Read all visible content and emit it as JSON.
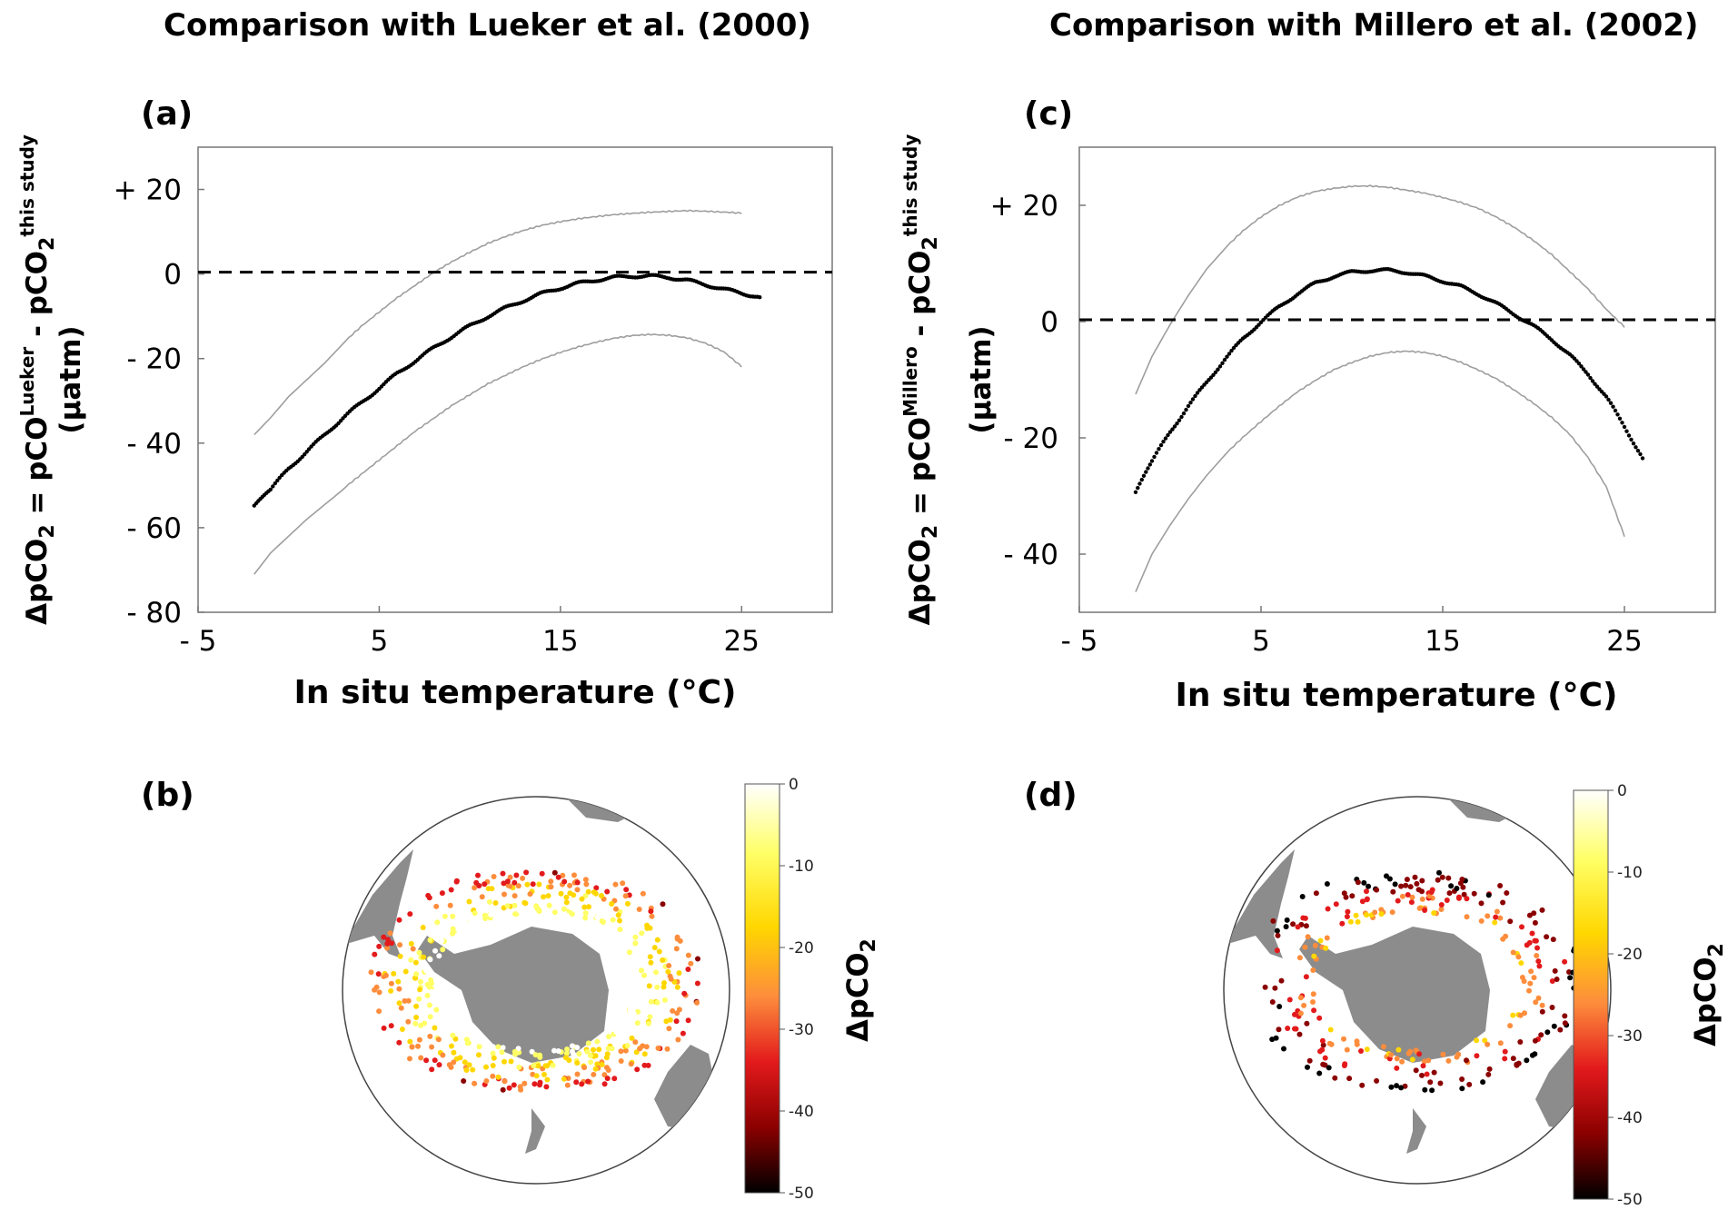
{
  "titles": {
    "left": "Comparison with Lueker et al. (2000)",
    "right": "Comparison with Millero et al. (2002)"
  },
  "panels": {
    "a": "(a)",
    "b": "(b)",
    "c": "(c)",
    "d": "(d)"
  },
  "colors": {
    "points": "#000000",
    "envelope": "#9e9e9e",
    "zero_line": "#000000",
    "land": "#8c8c8c",
    "colormap": [
      "#000000",
      "#8b0000",
      "#e31a1c",
      "#fd8d3c",
      "#ffd700",
      "#ffff66",
      "#ffffff"
    ]
  },
  "chart_data": [
    {
      "id": "a",
      "type": "scatter",
      "title": "",
      "xlabel": "In situ temperature (°C)",
      "ylabel": {
        "main": "ΔpCO",
        "sub": "2",
        "eq": " = pCO",
        "sup1": "Lueker",
        "minus": " - pCO",
        "sup2": "this study",
        "units": "(µatm)"
      },
      "xlim": [
        -5,
        30
      ],
      "ylim": [
        -80,
        30
      ],
      "xticks": [
        -5,
        5,
        15,
        25
      ],
      "xtick_labels": [
        "- 5",
        "5",
        "15",
        "25"
      ],
      "yticks": [
        -80,
        -60,
        -40,
        -20,
        0,
        20
      ],
      "ytick_labels": [
        "- 80",
        "- 60",
        "- 40",
        "- 20",
        "0",
        "+ 20"
      ],
      "zero_line": 0,
      "series": [
        {
          "name": "mean",
          "style": "points",
          "x": [
            -1.9,
            -1,
            0,
            1,
            2,
            3,
            4,
            5,
            6,
            7,
            8,
            9,
            10,
            11,
            12,
            13,
            14,
            15,
            16,
            17,
            18,
            19,
            20,
            21,
            22,
            23,
            24,
            25,
            26
          ],
          "y": [
            -55,
            -51,
            -46,
            -42,
            -38,
            -34,
            -30.5,
            -27,
            -23.5,
            -20.5,
            -17.5,
            -14.8,
            -12.3,
            -10,
            -8,
            -6.2,
            -4.6,
            -3.3,
            -2.2,
            -1.4,
            -0.8,
            -0.5,
            -0.5,
            -0.8,
            -1.5,
            -2.5,
            -3.6,
            -4.5,
            -5.5
          ]
        },
        {
          "name": "upper",
          "style": "line",
          "x": [
            -1.9,
            -1,
            0,
            1,
            2,
            3,
            4,
            5,
            6,
            7,
            8,
            9,
            10,
            11,
            12,
            13,
            14,
            15,
            16,
            17,
            18,
            19,
            20,
            21,
            22,
            23,
            24,
            25
          ],
          "y": [
            -38,
            -34,
            -29,
            -25,
            -21,
            -16.5,
            -12.5,
            -9,
            -5.5,
            -2.5,
            0.5,
            3,
            5.2,
            7.2,
            8.8,
            10.2,
            11.4,
            12.3,
            13.1,
            13.7,
            14.2,
            14.5,
            14.7,
            14.8,
            14.9,
            14.7,
            14.5,
            14.3
          ]
        },
        {
          "name": "lower",
          "style": "line",
          "x": [
            -1.9,
            -1,
            0,
            1,
            2,
            3,
            4,
            5,
            6,
            7,
            8,
            9,
            10,
            11,
            12,
            13,
            14,
            15,
            16,
            17,
            18,
            19,
            20,
            21,
            22,
            23,
            24,
            25
          ],
          "y": [
            -71,
            -66,
            -62,
            -58,
            -54.5,
            -51,
            -47.5,
            -44,
            -40.5,
            -37,
            -34,
            -31,
            -28.5,
            -26,
            -24,
            -22,
            -20.2,
            -18.6,
            -17.2,
            -16,
            -15,
            -14.4,
            -14.2,
            -14.5,
            -15.2,
            -16.5,
            -18.5,
            -22
          ]
        }
      ]
    },
    {
      "id": "c",
      "type": "scatter",
      "title": "",
      "xlabel": "In situ temperature (°C)",
      "ylabel": {
        "main": "ΔpCO",
        "sub": "2",
        "eq": " = pCO",
        "sup1": "Millero",
        "minus": " - pCO",
        "sup2": "this study",
        "units": "(µatm)"
      },
      "xlim": [
        -5,
        30
      ],
      "ylim": [
        -50,
        30
      ],
      "xticks": [
        -5,
        5,
        15,
        25
      ],
      "xtick_labels": [
        "- 5",
        "5",
        "15",
        "25"
      ],
      "yticks": [
        -40,
        -20,
        0,
        20
      ],
      "ytick_labels": [
        "- 40",
        "- 20",
        "0",
        "+ 20"
      ],
      "zero_line": 0,
      "series": [
        {
          "name": "mean",
          "style": "points",
          "x": [
            -1.9,
            -1,
            0,
            1,
            2,
            3,
            4,
            5,
            6,
            7,
            8,
            9,
            10,
            11,
            12,
            13,
            14,
            15,
            16,
            17,
            18,
            19,
            20,
            21,
            22,
            23,
            24,
            25,
            26
          ],
          "y": [
            -29.5,
            -24,
            -19,
            -14.5,
            -10.5,
            -6.5,
            -3,
            0,
            2.5,
            4.8,
            6.6,
            7.8,
            8.5,
            8.8,
            8.8,
            8.5,
            7.8,
            7,
            6,
            4.7,
            3,
            1.2,
            -0.8,
            -3,
            -5.8,
            -9,
            -13,
            -18,
            -23.5
          ]
        },
        {
          "name": "upper",
          "style": "line",
          "x": [
            -1.9,
            -1,
            0,
            1,
            2,
            3,
            4,
            5,
            6,
            7,
            8,
            9,
            10,
            11,
            12,
            13,
            14,
            15,
            16,
            17,
            18,
            19,
            20,
            21,
            22,
            23,
            24,
            25
          ],
          "y": [
            -12.5,
            -6,
            -0.5,
            4.5,
            9,
            12.5,
            15.5,
            18,
            20,
            21.5,
            22.5,
            23,
            23.3,
            23.3,
            23,
            22.5,
            22,
            21.3,
            20.5,
            19.5,
            18,
            16.2,
            14,
            11.5,
            8.5,
            5.5,
            2,
            -1
          ]
        },
        {
          "name": "lower",
          "style": "line",
          "x": [
            -1.9,
            -1,
            0,
            1,
            2,
            3,
            4,
            5,
            6,
            7,
            8,
            9,
            10,
            11,
            12,
            13,
            14,
            15,
            16,
            17,
            18,
            19,
            20,
            21,
            22,
            23,
            24,
            25
          ],
          "y": [
            -46.5,
            -40,
            -35,
            -30.5,
            -26.5,
            -23,
            -20,
            -17.2,
            -14.5,
            -12,
            -10,
            -8.2,
            -7,
            -6,
            -5.4,
            -5.2,
            -5.4,
            -6,
            -7,
            -8.3,
            -9.8,
            -11.8,
            -14,
            -16.5,
            -19.5,
            -23.5,
            -28.5,
            -37
          ]
        }
      ]
    }
  ],
  "colorbars": [
    {
      "id": "b",
      "label": "ΔpCO",
      "label_sub": "2",
      "ticks": [
        "0",
        "-10",
        "-20",
        "-30",
        "-40",
        "-50"
      ]
    },
    {
      "id": "d",
      "label": "ΔpCO",
      "label_sub": "2",
      "ticks": [
        "0",
        "-10",
        "-20",
        "-30",
        "-40",
        "-50"
      ]
    }
  ]
}
